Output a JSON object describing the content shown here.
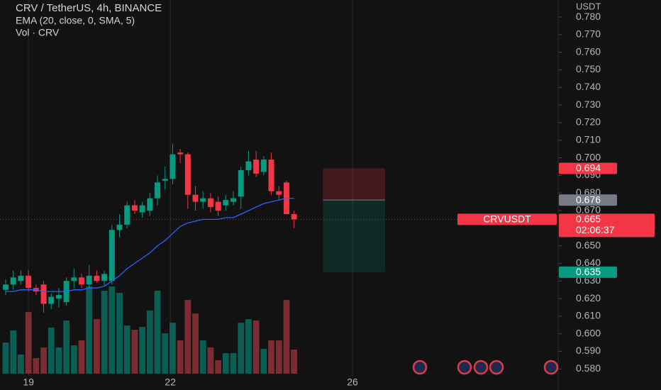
{
  "chart_data": {
    "type": "candlestick",
    "title": "CRV / TetherUS, 4h, BINANCE",
    "indicators": [
      "EMA (20, close, 0, SMA, 5)",
      "Vol · CRV"
    ],
    "y_axis_unit": "USDT",
    "open": [
      0.625,
      0.628,
      0.63,
      0.633,
      0.626,
      0.628,
      0.617,
      0.62,
      0.618,
      0.63,
      0.632,
      0.628,
      0.633,
      0.63,
      0.63,
      0.659,
      0.662,
      0.673,
      0.669,
      0.67,
      0.677,
      0.687,
      0.688,
      0.703,
      0.702,
      0.679,
      0.675,
      0.677,
      0.675,
      0.673,
      0.675,
      0.678,
      0.693,
      0.699,
      0.692,
      0.699,
      0.681,
      0.686,
      0.668
    ],
    "high": [
      0.631,
      0.636,
      0.636,
      0.636,
      0.628,
      0.63,
      0.623,
      0.626,
      0.632,
      0.637,
      0.634,
      0.639,
      0.636,
      0.636,
      0.662,
      0.668,
      0.675,
      0.676,
      0.675,
      0.68,
      0.69,
      0.695,
      0.708,
      0.705,
      0.703,
      0.684,
      0.681,
      0.68,
      0.678,
      0.679,
      0.681,
      0.695,
      0.704,
      0.704,
      0.701,
      0.703,
      0.684,
      0.687,
      0.67
    ],
    "low": [
      0.622,
      0.625,
      0.628,
      0.624,
      0.622,
      0.612,
      0.614,
      0.615,
      0.616,
      0.626,
      0.626,
      0.626,
      0.629,
      0.627,
      0.628,
      0.655,
      0.66,
      0.668,
      0.666,
      0.667,
      0.673,
      0.682,
      0.685,
      0.697,
      0.671,
      0.67,
      0.671,
      0.669,
      0.667,
      0.67,
      0.673,
      0.671,
      0.69,
      0.689,
      0.69,
      0.679,
      0.676,
      0.668,
      0.66
    ],
    "close": [
      0.628,
      0.632,
      0.633,
      0.626,
      0.624,
      0.617,
      0.621,
      0.622,
      0.63,
      0.632,
      0.628,
      0.633,
      0.63,
      0.634,
      0.659,
      0.662,
      0.673,
      0.67,
      0.673,
      0.677,
      0.686,
      0.688,
      0.702,
      0.702,
      0.679,
      0.675,
      0.677,
      0.672,
      0.67,
      0.676,
      0.677,
      0.693,
      0.698,
      0.691,
      0.699,
      0.681,
      0.679,
      0.668,
      0.665
    ],
    "volume": [
      44,
      61,
      27,
      87,
      22,
      37,
      65,
      37,
      75,
      40,
      47,
      123,
      77,
      117,
      123,
      114,
      68,
      62,
      66,
      89,
      117,
      57,
      72,
      47,
      104,
      85,
      47,
      37,
      19,
      29,
      29,
      72,
      77,
      75,
      35,
      47,
      47,
      104,
      34
    ],
    "ema": [
      0.624,
      0.624,
      0.625,
      0.625,
      0.625,
      0.624,
      0.624,
      0.624,
      0.624,
      0.625,
      0.625,
      0.626,
      0.626,
      0.627,
      0.63,
      0.633,
      0.637,
      0.64,
      0.643,
      0.646,
      0.65,
      0.653,
      0.657,
      0.661,
      0.663,
      0.664,
      0.665,
      0.665,
      0.665,
      0.666,
      0.666,
      0.668,
      0.67,
      0.672,
      0.674,
      0.675,
      0.676,
      0.677,
      0.677
    ],
    "colors": {
      "up": "#089981",
      "down": "#f23645",
      "volume_up": "#0b5e54",
      "volume_down": "#7c2c33",
      "ema": "#2962ff"
    },
    "xlim": [
      -0.75,
      72.8
    ],
    "xticks": [
      {
        "value": 3,
        "label": "19"
      },
      {
        "value": 21.7,
        "label": "22"
      },
      {
        "value": 45.7,
        "label": "26"
      }
    ],
    "ylim": [
      0.5761,
      0.7897
    ],
    "yticks": [
      {
        "value": 0.78,
        "label": "0.780"
      },
      {
        "value": 0.77,
        "label": "0.770"
      },
      {
        "value": 0.76,
        "label": "0.760"
      },
      {
        "value": 0.75,
        "label": "0.750"
      },
      {
        "value": 0.74,
        "label": "0.740"
      },
      {
        "value": 0.73,
        "label": "0.730"
      },
      {
        "value": 0.72,
        "label": "0.720"
      },
      {
        "value": 0.71,
        "label": "0.710"
      },
      {
        "value": 0.7,
        "label": "0.700"
      },
      {
        "value": 0.69,
        "label": "0.690"
      },
      {
        "value": 0.68,
        "label": "0.680"
      },
      {
        "value": 0.67,
        "label": "0.670"
      },
      {
        "value": 0.65,
        "label": "0.650"
      },
      {
        "value": 0.64,
        "label": "0.640"
      },
      {
        "value": 0.63,
        "label": "0.630"
      },
      {
        "value": 0.62,
        "label": "0.620"
      },
      {
        "value": 0.61,
        "label": "0.610"
      },
      {
        "value": 0.6,
        "label": "0.600"
      },
      {
        "value": 0.59,
        "label": "0.590"
      },
      {
        "value": 0.58,
        "label": "0.580"
      }
    ],
    "last_price": {
      "symbol": "CRVUSDT",
      "value": 0.665,
      "countdown": "02:06:37"
    },
    "position": {
      "x": [
        41.8,
        50
      ],
      "stop": 0.694,
      "entry": 0.676,
      "target": 0.635
    }
  }
}
